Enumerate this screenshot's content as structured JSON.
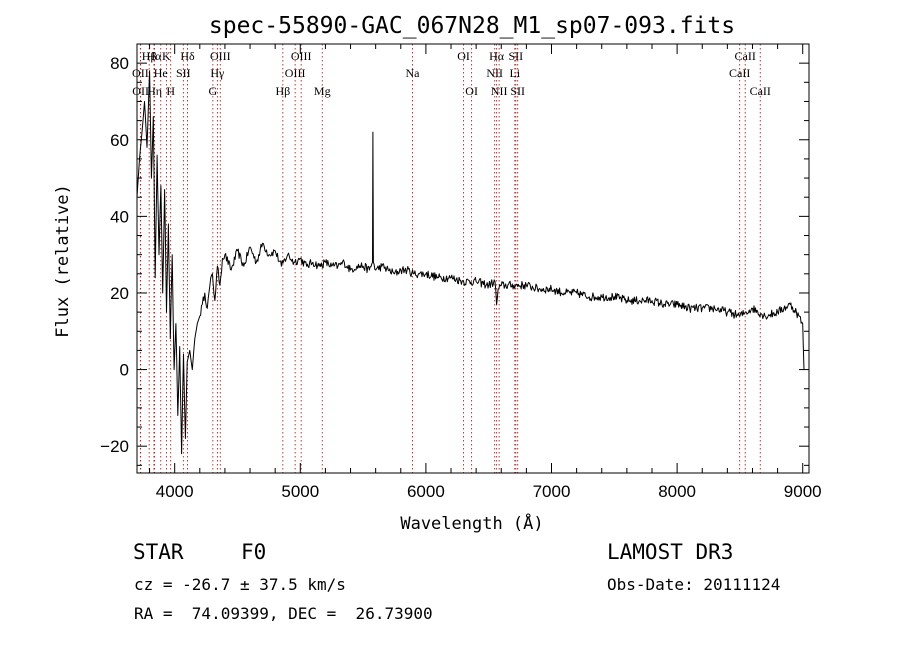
{
  "chart_data": {
    "type": "line",
    "title": "spec-55890-GAC_067N28_M1_sp07-093.fits",
    "xlabel": "Wavelength (Å)",
    "ylabel": "Flux (relative)",
    "xlim": [
      3700,
      9050
    ],
    "ylim": [
      -27,
      85
    ],
    "x_ticks": [
      4000,
      5000,
      6000,
      7000,
      8000,
      9000
    ],
    "y_ticks": [
      -20,
      0,
      20,
      40,
      60,
      80
    ],
    "grid": false,
    "line_color": "#000000",
    "marker_color": "#b22222",
    "series": [
      {
        "name": "flux",
        "x": [
          3700,
          3720,
          3740,
          3760,
          3780,
          3800,
          3815,
          3830,
          3845,
          3860,
          3875,
          3890,
          3905,
          3920,
          3935,
          3950,
          3965,
          3980,
          3995,
          4010,
          4025,
          4040,
          4055,
          4070,
          4085,
          4100,
          4120,
          4140,
          4160,
          4180,
          4200,
          4220,
          4240,
          4260,
          4280,
          4300,
          4320,
          4340,
          4360,
          4380,
          4400,
          4450,
          4500,
          4550,
          4600,
          4650,
          4700,
          4750,
          4800,
          4850,
          4900,
          4950,
          5000,
          5050,
          5100,
          5150,
          5200,
          5250,
          5300,
          5350,
          5400,
          5450,
          5500,
          5550,
          5575,
          5578,
          5582,
          5600,
          5650,
          5700,
          5750,
          5800,
          5850,
          5900,
          5950,
          6000,
          6100,
          6200,
          6300,
          6400,
          6500,
          6550,
          6563,
          6575,
          6600,
          6700,
          6800,
          6900,
          7000,
          7100,
          7200,
          7300,
          7400,
          7500,
          7600,
          7700,
          7800,
          7900,
          8000,
          8100,
          8200,
          8300,
          8400,
          8500,
          8550,
          8600,
          8700,
          8800,
          8850,
          8900,
          8950,
          9000,
          9010
        ],
        "y": [
          45,
          55,
          62,
          70,
          58,
          78,
          50,
          66,
          24,
          56,
          30,
          48,
          20,
          47,
          15,
          38,
          8,
          30,
          0,
          12,
          -12,
          6,
          -22,
          4,
          -18,
          2,
          5,
          0,
          8,
          12,
          14,
          17,
          20,
          16,
          22,
          25,
          18,
          27,
          22,
          29,
          30,
          26,
          31,
          27,
          32,
          28,
          33,
          30,
          31,
          27,
          30,
          28,
          29,
          27,
          28,
          27,
          28,
          27,
          27,
          28,
          26,
          27,
          27,
          26,
          28,
          62,
          28,
          26,
          27,
          26,
          25,
          26,
          26,
          25,
          25,
          25,
          24,
          24,
          23,
          23,
          22,
          23,
          17,
          21,
          22,
          22,
          22,
          21,
          21,
          20,
          20,
          19,
          19,
          19,
          18,
          18,
          18,
          17,
          17,
          16,
          16,
          16,
          15,
          14,
          15,
          16,
          14,
          15,
          16,
          17,
          15,
          12,
          0
        ]
      }
    ],
    "lines": [
      {
        "name": "Hβ",
        "x": 3797,
        "row": 0
      },
      {
        "name": "OII",
        "x": 3727,
        "row": 1
      },
      {
        "name": "OII",
        "x": 3729,
        "row": 2
      },
      {
        "name": "Hα",
        "x": 3835,
        "row": 0
      },
      {
        "name": "He",
        "x": 3889,
        "row": 1
      },
      {
        "name": "Hη",
        "x": 3840,
        "row": 2
      },
      {
        "name": "K",
        "x": 3934,
        "row": 0
      },
      {
        "name": "SII",
        "x": 4069,
        "row": 1
      },
      {
        "name": "H",
        "x": 3968,
        "row": 2
      },
      {
        "name": "Hδ",
        "x": 4102,
        "row": 0
      },
      {
        "name": "OIII",
        "x": 4363,
        "row": 0
      },
      {
        "name": "Hγ",
        "x": 4340,
        "row": 1
      },
      {
        "name": "G",
        "x": 4304,
        "row": 2
      },
      {
        "name": "Hβ",
        "x": 4861,
        "row": 2
      },
      {
        "name": "OIII",
        "x": 5007,
        "row": 0
      },
      {
        "name": "OIII",
        "x": 4959,
        "row": 1
      },
      {
        "name": "Mg",
        "x": 5175,
        "row": 2
      },
      {
        "name": "Na",
        "x": 5893,
        "row": 1
      },
      {
        "name": "OI",
        "x": 6300,
        "row": 0
      },
      {
        "name": "OI",
        "x": 6364,
        "row": 2
      },
      {
        "name": "Hα",
        "x": 6563,
        "row": 0
      },
      {
        "name": "NII",
        "x": 6548,
        "row": 1
      },
      {
        "name": "NII",
        "x": 6583,
        "row": 2
      },
      {
        "name": "SII",
        "x": 6716,
        "row": 0
      },
      {
        "name": "Li",
        "x": 6708,
        "row": 1
      },
      {
        "name": "SII",
        "x": 6731,
        "row": 2
      },
      {
        "name": "CaII",
        "x": 8542,
        "row": 0
      },
      {
        "name": "CaII",
        "x": 8498,
        "row": 1
      },
      {
        "name": "CaII",
        "x": 8662,
        "row": 2
      }
    ]
  },
  "info": {
    "class_label": "STAR",
    "subclass": "F0",
    "survey": "LAMOST DR3",
    "cz": "cz = -26.7 ± 37.5 km/s",
    "obs_date": "Obs-Date: 20111124",
    "coords": "RA =  74.09399, DEC =  26.73900"
  }
}
